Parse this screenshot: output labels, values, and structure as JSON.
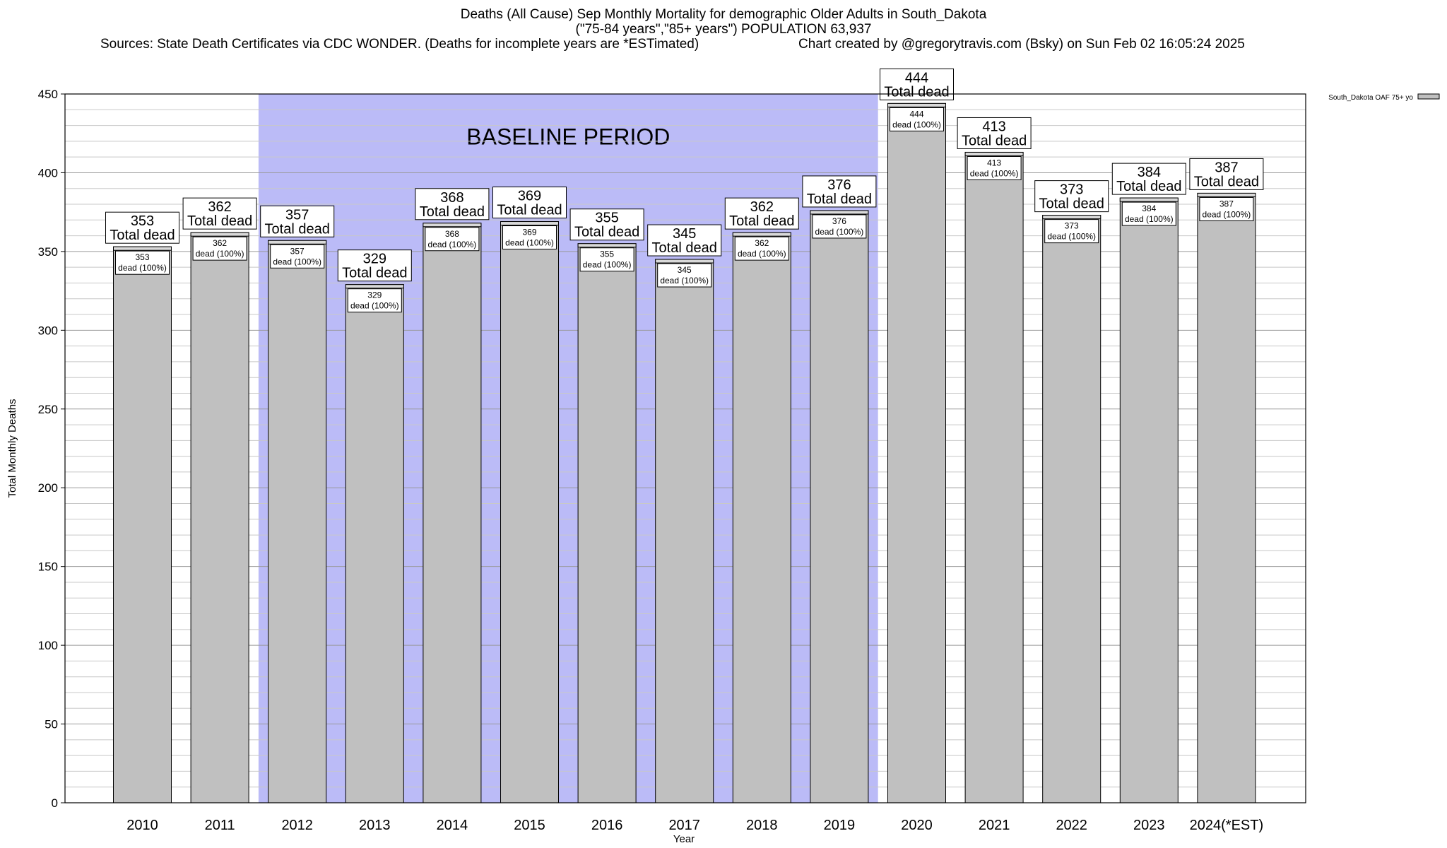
{
  "header": {
    "title_line1": "Deaths (All Cause) Sep Monthly Mortality for demographic Older Adults in South_Dakota",
    "title_line2": "(\"75-84 years\",\"85+ years\") POPULATION 63,937",
    "sources": "Sources: State Death Certificates via CDC WONDER. (Deaths for incomplete years are *ESTimated)",
    "credit": "Chart created by @gregorytravis.com (Bsky) on Sun Feb 02 16:05:24 2025"
  },
  "chart_data": {
    "type": "bar",
    "xlabel": "Year",
    "ylabel": "Total Monthly Deaths",
    "ylim": [
      0,
      450
    ],
    "yticks": [
      0,
      50,
      100,
      150,
      200,
      250,
      300,
      350,
      400,
      450
    ],
    "grid": true,
    "legend": {
      "position": "top-right",
      "entries": [
        "South_Dakota OAF 75+ yo"
      ]
    },
    "baseline": {
      "label": "BASELINE PERIOD",
      "from": "2012",
      "to": "2019",
      "color": "#bbbbf7"
    },
    "bar_color": "#c0c0c0",
    "total_label_word": "Total dead",
    "inner_label_suffix": "dead (100%)",
    "categories": [
      "2010",
      "2011",
      "2012",
      "2013",
      "2014",
      "2015",
      "2016",
      "2017",
      "2018",
      "2019",
      "2020",
      "2021",
      "2022",
      "2023",
      "2024(*EST)"
    ],
    "series": [
      {
        "name": "South_Dakota OAF 75+ yo",
        "values": [
          353,
          362,
          357,
          329,
          368,
          369,
          355,
          345,
          362,
          376,
          444,
          413,
          373,
          384,
          387
        ]
      }
    ]
  }
}
